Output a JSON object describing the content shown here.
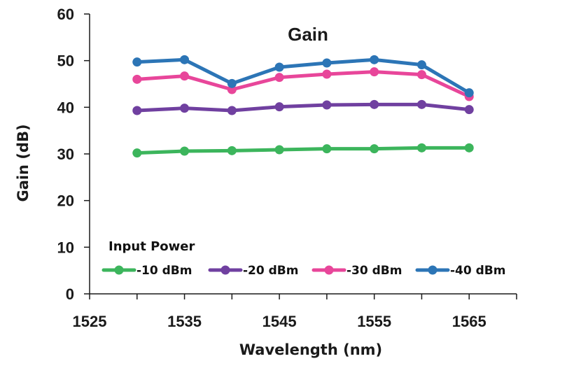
{
  "chart_data": {
    "type": "line",
    "title": "Gain",
    "xlabel": "Wavelength (nm)",
    "ylabel": "Gain (dB)",
    "xlim": [
      1525,
      1570
    ],
    "ylim": [
      0,
      60
    ],
    "xticks": [
      "1525",
      "1535",
      "1545",
      "1555",
      "1565"
    ],
    "yticks": [
      "0",
      "10",
      "20",
      "30",
      "40",
      "50",
      "60"
    ],
    "grid": false,
    "legend_title": "Input Power",
    "legend_position": "bottom",
    "x": [
      1530,
      1535,
      1540,
      1545,
      1550,
      1555,
      1560,
      1565
    ],
    "series": [
      {
        "name": "-10 dBm",
        "color": "#3cb55c",
        "values": [
          30.2,
          30.6,
          30.7,
          30.9,
          31.1,
          31.1,
          31.3,
          31.3
        ]
      },
      {
        "name": "-20 dBm",
        "color": "#7040a0",
        "values": [
          39.3,
          39.8,
          39.3,
          40.1,
          40.5,
          40.6,
          40.6,
          39.5
        ]
      },
      {
        "name": "-30 dBm",
        "color": "#e8469a",
        "values": [
          46.0,
          46.7,
          43.8,
          46.4,
          47.1,
          47.6,
          47.0,
          42.3
        ]
      },
      {
        "name": "-40 dBm",
        "color": "#2c75b6",
        "values": [
          49.7,
          50.2,
          45.1,
          48.6,
          49.5,
          50.2,
          49.1,
          43.1
        ]
      }
    ]
  }
}
